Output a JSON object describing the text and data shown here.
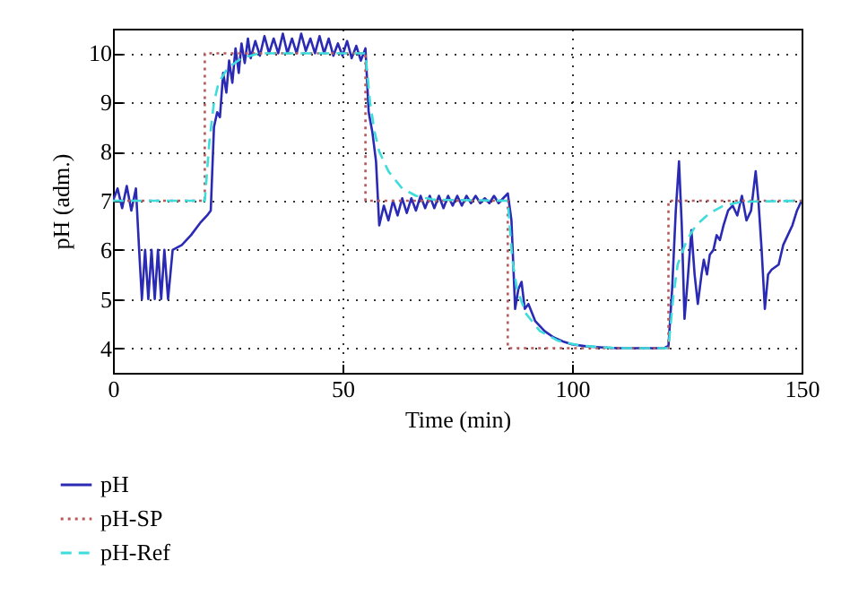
{
  "chart_data": {
    "type": "line",
    "xlabel": "Time (min)",
    "ylabel": "pH (adm.)",
    "xlim": [
      0,
      150
    ],
    "xticks": [
      0,
      50,
      100,
      150
    ],
    "ylim": [
      3.5,
      10.5
    ],
    "yticks": [
      4,
      5,
      6,
      7,
      8,
      9,
      10
    ],
    "grid": true,
    "legend": "bottom",
    "marker": "none",
    "series": [
      {
        "name": "pH",
        "color": "#2a2ab4",
        "line_style": "solid",
        "x": [
          0,
          1,
          2,
          3,
          4,
          5,
          5.7,
          6.3,
          7,
          7.7,
          8.4,
          9.1,
          9.8,
          10.5,
          11.2,
          12,
          13,
          15,
          17,
          19,
          20.5,
          21.3,
          22,
          22.7,
          23.3,
          24,
          24.7,
          25.3,
          26,
          26.7,
          27.4,
          28,
          28.7,
          29.4,
          30,
          31,
          32,
          33,
          34,
          35,
          36,
          37,
          38,
          39,
          40,
          41,
          42,
          43,
          44,
          45,
          46,
          47,
          48,
          49,
          50,
          51,
          52,
          53,
          54,
          55,
          55.7,
          56.5,
          57.3,
          58,
          59,
          60,
          61,
          62,
          63,
          64,
          65,
          66,
          67,
          68,
          69,
          70,
          71,
          72,
          73,
          74,
          75,
          76,
          77,
          78,
          79,
          80,
          81,
          82,
          83,
          84,
          85,
          86,
          86.8,
          87.6,
          88.3,
          89,
          89.7,
          90.5,
          92,
          94,
          96,
          98,
          100,
          103,
          106,
          110,
          115,
          120,
          121,
          121.8,
          122.6,
          123.3,
          123.9,
          124.5,
          125.2,
          126,
          126.7,
          127.4,
          128.2,
          128.7,
          129.4,
          130,
          130.8,
          131.5,
          132.2,
          133,
          134,
          135,
          136,
          137,
          138,
          139,
          140,
          140.6,
          141.3,
          142,
          142.7,
          143.5,
          145,
          146,
          147,
          148,
          149,
          150
        ],
        "values": [
          7.0,
          7.25,
          6.85,
          7.3,
          6.8,
          7.25,
          6.0,
          5.0,
          6.0,
          5.0,
          6.0,
          5.0,
          6.0,
          5.0,
          6.0,
          5.0,
          6.0,
          6.1,
          6.3,
          6.55,
          6.7,
          6.8,
          8.5,
          8.8,
          8.7,
          9.6,
          9.2,
          9.85,
          9.4,
          10.1,
          9.6,
          10.2,
          9.8,
          10.3,
          9.9,
          10.25,
          9.95,
          10.35,
          10.0,
          10.3,
          10.0,
          10.4,
          10.0,
          10.3,
          10.0,
          10.4,
          10.05,
          10.3,
          10.0,
          10.35,
          10.0,
          10.3,
          9.95,
          10.2,
          9.95,
          10.25,
          9.9,
          10.15,
          9.85,
          10.1,
          8.8,
          8.4,
          7.8,
          6.5,
          6.9,
          6.6,
          7.0,
          6.7,
          7.05,
          6.75,
          7.05,
          6.8,
          7.1,
          6.85,
          7.1,
          6.85,
          7.1,
          6.85,
          7.1,
          6.9,
          7.1,
          6.9,
          7.1,
          6.95,
          7.1,
          6.95,
          7.05,
          6.95,
          7.1,
          6.95,
          7.05,
          7.15,
          6.6,
          4.8,
          5.2,
          5.35,
          4.8,
          4.9,
          4.55,
          4.35,
          4.22,
          4.14,
          4.08,
          4.04,
          4.02,
          4.0,
          4.0,
          4.0,
          4.05,
          5.2,
          6.8,
          7.8,
          6.5,
          4.6,
          5.4,
          6.4,
          5.5,
          4.9,
          5.5,
          5.8,
          5.5,
          5.9,
          6.0,
          6.3,
          6.2,
          6.5,
          6.8,
          6.9,
          6.7,
          7.1,
          6.6,
          6.8,
          7.6,
          7.0,
          6.0,
          4.8,
          5.5,
          5.6,
          5.7,
          6.1,
          6.3,
          6.5,
          6.8,
          7.0
        ]
      },
      {
        "name": "pH-SP",
        "type": "step",
        "color": "#b85a5a",
        "line_style": "dotted",
        "x": [
          0,
          20,
          55,
          86,
          121,
          150
        ],
        "values": [
          7,
          10,
          7,
          4,
          7,
          7
        ]
      },
      {
        "name": "pH-Ref",
        "color": "#3fdcdc",
        "line_style": "dashed",
        "x": [
          0,
          20,
          21,
          22,
          23,
          25,
          28,
          32,
          55,
          56,
          57,
          58,
          60,
          63,
          66,
          70,
          86,
          87,
          88,
          90,
          93,
          97,
          102,
          110,
          121,
          122,
          123,
          125,
          127,
          130,
          133,
          137,
          150
        ],
        "values": [
          7,
          7,
          8.2,
          9.0,
          9.4,
          9.7,
          9.9,
          10,
          10,
          9.0,
          8.4,
          8.0,
          7.6,
          7.25,
          7.1,
          7.02,
          7,
          5.8,
          5.2,
          4.7,
          4.35,
          4.15,
          4.05,
          4,
          4,
          5.0,
          5.7,
          6.2,
          6.5,
          6.75,
          6.9,
          6.98,
          7
        ]
      }
    ]
  }
}
